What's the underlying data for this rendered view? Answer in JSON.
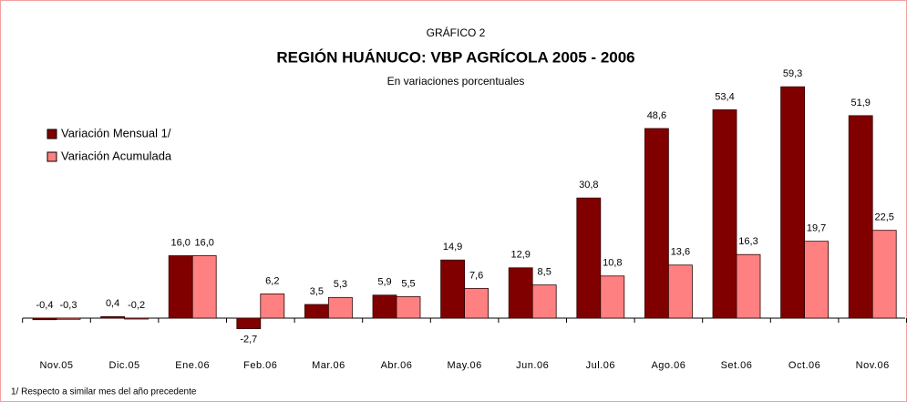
{
  "chart_data": {
    "type": "bar",
    "label": "GRÁFICO 2",
    "title": "REGIÓN HUÁNUCO: VBP AGRÍCOLA 2005 - 2006",
    "subtitle": "En variaciones porcentuales",
    "footnote": "1/ Respecto a similar mes del año precedente",
    "categories": [
      "Nov.05",
      "Dic.05",
      "Ene.06",
      "Feb.06",
      "Mar.06",
      "Abr.06",
      "May.06",
      "Jun.06",
      "Jul.06",
      "Ago.06",
      "Set.06",
      "Oct.06",
      "Nov.06"
    ],
    "series": [
      {
        "name": "Variación Mensual 1/",
        "color": "#800000",
        "values": [
          -0.4,
          0.4,
          16.0,
          -2.7,
          3.5,
          5.9,
          14.9,
          12.9,
          30.8,
          48.6,
          53.4,
          59.3,
          51.9
        ],
        "value_labels": [
          "-0,4",
          "0,4",
          "16,0",
          "-2,7",
          "3,5",
          "5,9",
          "14,9",
          "12,9",
          "30,8",
          "48,6",
          "53,4",
          "59,3",
          "51,9"
        ]
      },
      {
        "name": "Variación Acumulada",
        "color": "#ff8080",
        "values": [
          -0.3,
          -0.2,
          16.0,
          6.2,
          5.3,
          5.5,
          7.6,
          8.5,
          10.8,
          13.6,
          16.3,
          19.7,
          22.5
        ],
        "value_labels": [
          "-0,3",
          "-0,2",
          "16,0",
          "6,2",
          "5,3",
          "5,5",
          "7,6",
          "8,5",
          "10,8",
          "13,6",
          "16,3",
          "19,7",
          "22,5"
        ]
      }
    ]
  }
}
